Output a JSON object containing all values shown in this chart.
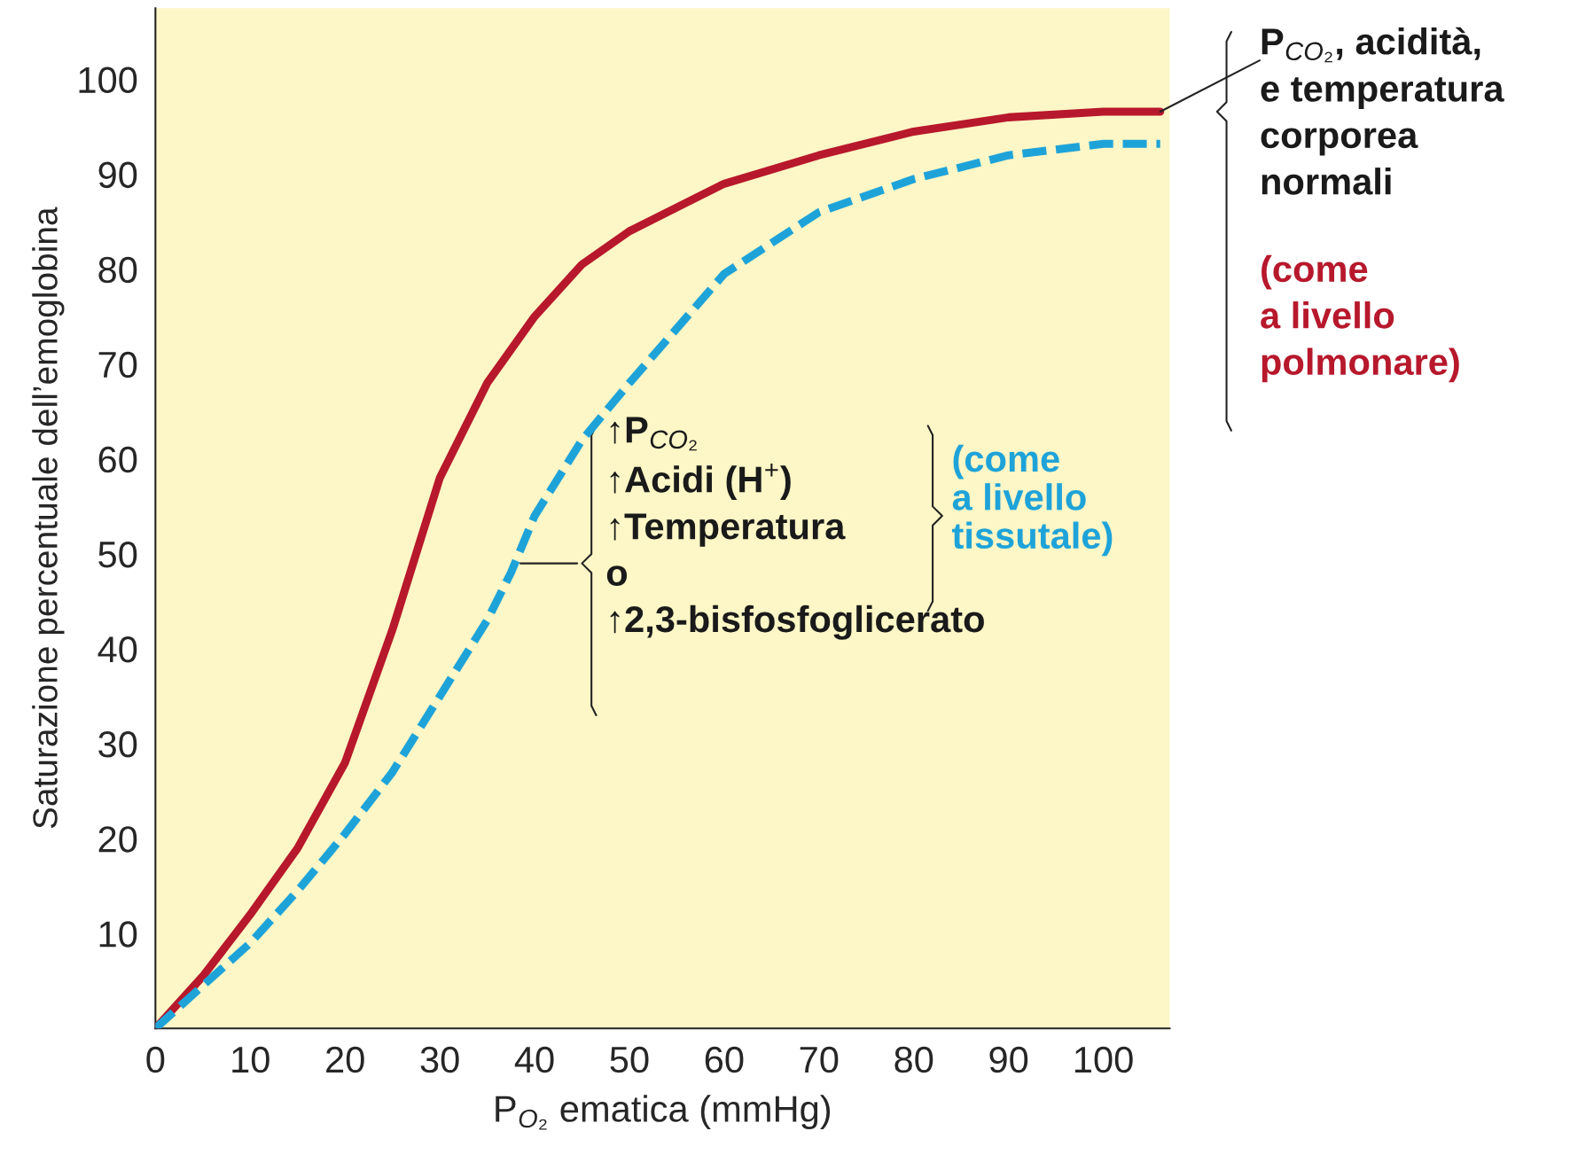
{
  "chart_data": {
    "type": "line",
    "xlabel": "P$_{O₂}$ ematica (mmHg)",
    "ylabel": "Saturazione percentuale dell’emoglobina",
    "xlim": [
      0,
      107
    ],
    "ylim": [
      0,
      107.5
    ],
    "xticks": [
      0,
      10,
      20,
      30,
      40,
      50,
      60,
      70,
      80,
      90,
      100
    ],
    "yticks": [
      10,
      20,
      30,
      40,
      50,
      60,
      70,
      80,
      90,
      100
    ],
    "grid": false,
    "legend": false,
    "marker": "none",
    "series": [
      {
        "color": "#b7182c",
        "line_style": "solid",
        "x": [
          0,
          5,
          10,
          15,
          20,
          25,
          27.5,
          30,
          35,
          40,
          45,
          50,
          60,
          70,
          80,
          90,
          100,
          106
        ],
        "values": [
          0,
          5.5,
          12,
          19,
          28,
          42,
          50,
          58,
          68,
          75,
          80.5,
          84,
          89,
          92,
          94.5,
          96,
          96.6,
          96.6
        ]
      },
      {
        "color": "#1ea3d9",
        "line_style": "dashed",
        "x": [
          0,
          5,
          10,
          15,
          20,
          25,
          30,
          35,
          37.5,
          40,
          45,
          50,
          60,
          70,
          80,
          90,
          100,
          106
        ],
        "values": [
          0,
          4.5,
          9,
          14.5,
          20.5,
          27,
          35,
          43,
          48,
          54,
          62,
          68,
          79.5,
          86,
          89.5,
          92,
          93.2,
          93.2
        ]
      }
    ],
    "annotations": [
      {
        "text": "P$_{CO₂}$, acidità,\ne temperatura\ncorporea\nnormali",
        "x": 106,
        "y": 96.6
      },
      "(come\na livello\npolmonare)",
      {
        "text": "↑P$_{CO₂}$\n↑Acidi (H$^{+}$)\n↑Temperatura\no\n↑2,3-bisfosfoglicerato",
        "x": 38,
        "y": 49
      },
      "(come\na livello\ntissutale)"
    ]
  }
}
